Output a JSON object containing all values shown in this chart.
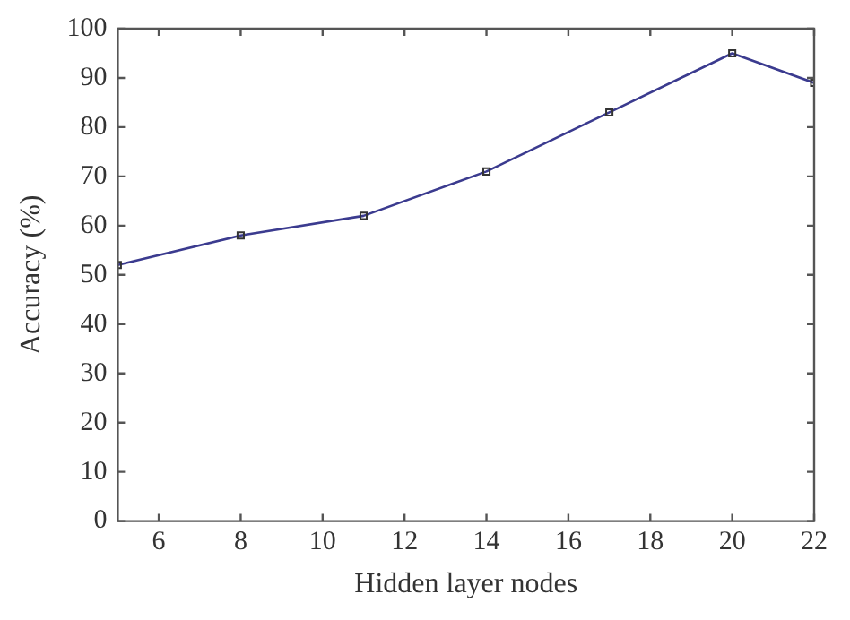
{
  "chart_data": {
    "type": "line",
    "xlabel": "Hidden layer nodes",
    "ylabel": "Accuracy (%)",
    "x": [
      5,
      8,
      11,
      14,
      17,
      20,
      22
    ],
    "series": [
      {
        "color": "#3b3b8f",
        "values": [
          52,
          58,
          62,
          71,
          83,
          95,
          89
        ]
      }
    ],
    "xlim": [
      5,
      22
    ],
    "xticks": [
      6,
      8,
      10,
      12,
      14,
      16,
      18,
      20,
      22
    ],
    "ylim": [
      0,
      100
    ],
    "yticks": [
      0,
      10,
      20,
      30,
      40,
      50,
      60,
      70,
      80,
      90,
      100
    ],
    "grid": false,
    "legend": false,
    "marker": "square",
    "line_style": "solid"
  }
}
